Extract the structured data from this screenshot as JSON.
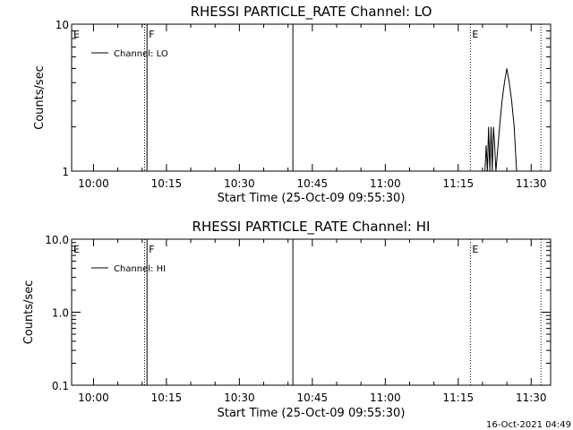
{
  "chart_data": [
    {
      "type": "line",
      "title": "RHESSI PARTICLE_RATE Channel: LO",
      "xlabel": "Start Time (25-Oct-09 09:55:30)",
      "ylabel": "Counts/sec",
      "y_scale": "log",
      "ylim": [
        1,
        10
      ],
      "y_ticks": [
        "1",
        "10"
      ],
      "xlim": [
        "09:55:30",
        "11:34:00"
      ],
      "x_ticks": [
        "10:00",
        "10:15",
        "10:30",
        "10:45",
        "11:00",
        "11:15",
        "11:30"
      ],
      "legend": {
        "label": "Channel: LO",
        "placement": "top-left"
      },
      "markers": [
        {
          "time": "09:55:30",
          "label": "E",
          "style": "dotted"
        },
        {
          "time": "10:10:30",
          "label": "",
          "style": "dotted"
        },
        {
          "time": "10:11:00",
          "label": "F",
          "style": "solid"
        },
        {
          "time": "10:41:00",
          "label": "",
          "style": "solid"
        },
        {
          "time": "11:17:30",
          "label": "E",
          "style": "dotted"
        },
        {
          "time": "11:32:00",
          "label": "",
          "style": "dotted"
        }
      ],
      "series": [
        {
          "name": "Channel: LO",
          "points": [
            [
              "11:20:30",
              1
            ],
            [
              "11:20:45",
              1.5
            ],
            [
              "11:21:00",
              1
            ],
            [
              "11:21:15",
              2
            ],
            [
              "11:21:30",
              1
            ],
            [
              "11:21:45",
              2
            ],
            [
              "11:22:00",
              1
            ],
            [
              "11:22:15",
              2
            ],
            [
              "11:22:30",
              1.5
            ],
            [
              "11:22:45",
              1
            ],
            [
              "11:23:30",
              2
            ],
            [
              "11:24:00",
              3
            ],
            [
              "11:24:30",
              4
            ],
            [
              "11:25:00",
              5
            ],
            [
              "11:25:30",
              4
            ],
            [
              "11:26:00",
              3
            ],
            [
              "11:26:30",
              2
            ],
            [
              "11:27:00",
              1
            ]
          ]
        }
      ]
    },
    {
      "type": "line",
      "title": "RHESSI PARTICLE_RATE Channel: HI",
      "xlabel": "Start Time (25-Oct-09 09:55:30)",
      "ylabel": "Counts/sec",
      "y_scale": "log",
      "ylim": [
        0.1,
        10
      ],
      "y_ticks": [
        "0.1",
        "1.0",
        "10.0"
      ],
      "xlim": [
        "09:55:30",
        "11:34:00"
      ],
      "x_ticks": [
        "10:00",
        "10:15",
        "10:30",
        "10:45",
        "11:00",
        "11:15",
        "11:30"
      ],
      "legend": {
        "label": "Channel: HI",
        "placement": "top-left"
      },
      "markers": [
        {
          "time": "09:55:30",
          "label": "E",
          "style": "dotted"
        },
        {
          "time": "10:10:30",
          "label": "",
          "style": "dotted"
        },
        {
          "time": "10:11:00",
          "label": "F",
          "style": "solid"
        },
        {
          "time": "10:41:00",
          "label": "",
          "style": "solid"
        },
        {
          "time": "11:17:30",
          "label": "E",
          "style": "dotted"
        },
        {
          "time": "11:32:00",
          "label": "",
          "style": "dotted"
        }
      ],
      "series": [
        {
          "name": "Channel: HI",
          "points": []
        }
      ]
    }
  ],
  "timestamp": "16-Oct-2021 04:49"
}
